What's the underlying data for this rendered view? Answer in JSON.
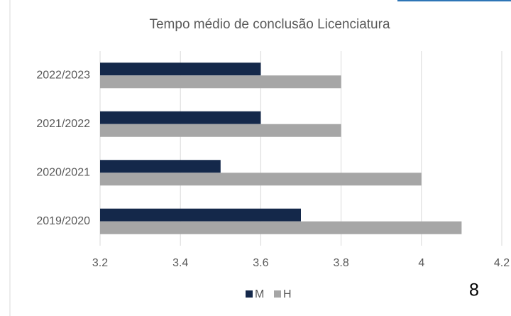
{
  "chart_data": {
    "type": "barh",
    "title": "Tempo médio de conclusão Licenciatura",
    "categories": [
      "2019/2020",
      "2020/2021",
      "2021/2022",
      "2022/2023"
    ],
    "series": [
      {
        "name": "M",
        "color": "#14284a",
        "values": [
          3.7,
          3.5,
          3.6,
          3.6
        ]
      },
      {
        "name": "H",
        "color": "#a6a6a6",
        "values": [
          4.1,
          4.0,
          3.8,
          3.8
        ]
      }
    ],
    "xlim": [
      3.2,
      4.2
    ],
    "xticks": [
      3.2,
      3.4,
      3.6,
      3.8,
      4,
      4.2
    ],
    "grid": true,
    "legend": "bottom"
  },
  "page_number": "8"
}
